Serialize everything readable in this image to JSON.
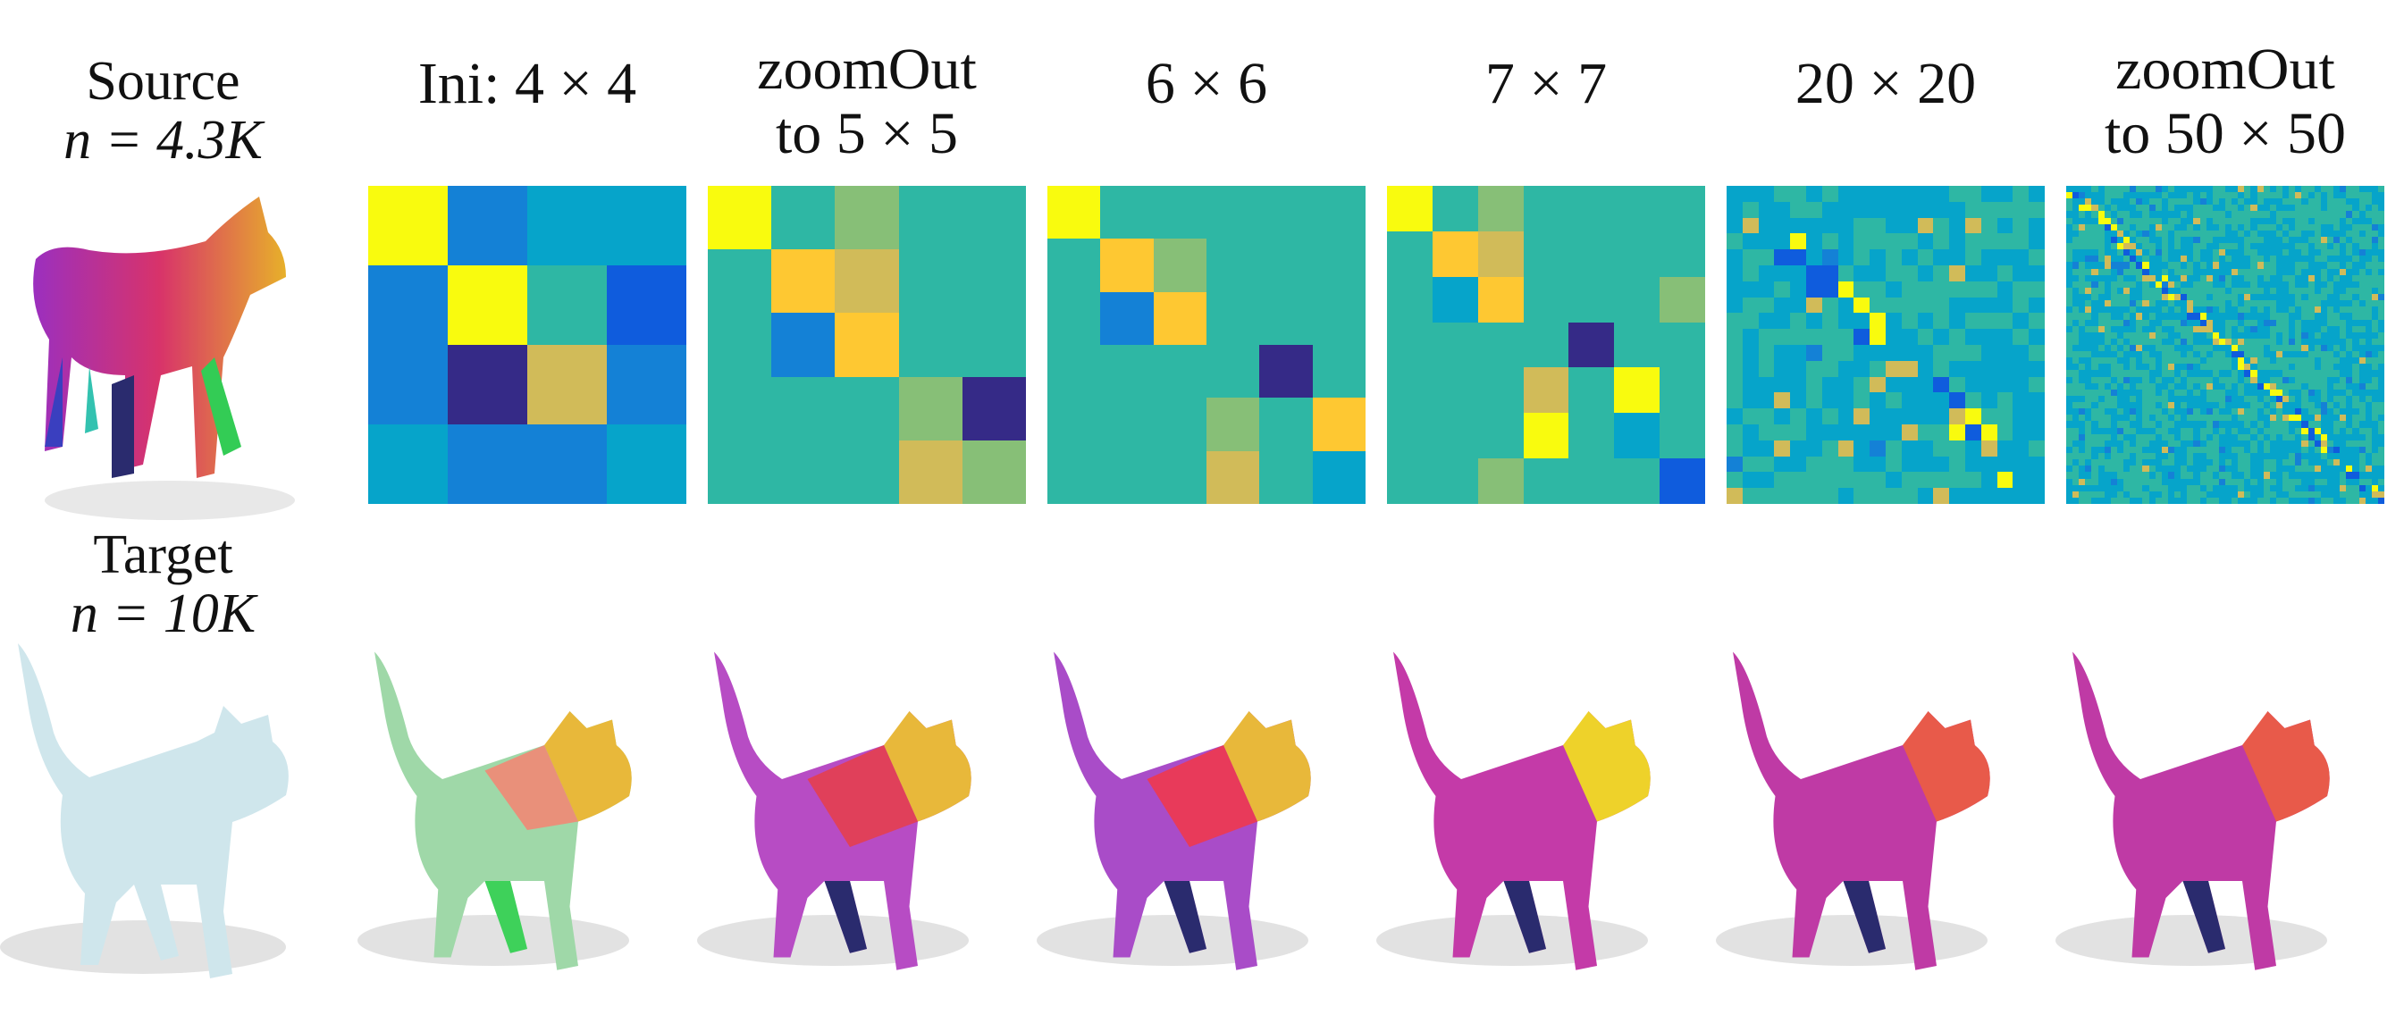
{
  "source": {
    "title": "Source",
    "n_label": "n = 4.3K"
  },
  "target": {
    "title": "Target",
    "n_label": "n = 10K"
  },
  "columns": [
    {
      "line1": "Ini: 4 × 4",
      "line2": "",
      "size": 4
    },
    {
      "line1": "zoomOut",
      "line2": "to 5 × 5",
      "size": 5
    },
    {
      "line1": "6 × 6",
      "line2": "",
      "size": 6
    },
    {
      "line1": "7 × 7",
      "line2": "",
      "size": 7
    },
    {
      "line1": "20 × 20",
      "line2": "",
      "size": 20
    },
    {
      "line1": "zoomOut",
      "line2": "to 50 × 50",
      "size": 50
    }
  ],
  "colormap": [
    "#352a87",
    "#0f5cdd",
    "#1481d6",
    "#06a4ca",
    "#2eb7a4",
    "#87bf77",
    "#d1bb59",
    "#fec832",
    "#f9fb0e"
  ],
  "matrices": [
    [
      [
        8,
        2,
        3,
        3
      ],
      [
        2,
        8,
        4,
        1
      ],
      [
        2,
        0,
        6,
        2
      ],
      [
        3,
        2,
        2,
        3
      ]
    ],
    [
      [
        8,
        4,
        5,
        4,
        4
      ],
      [
        4,
        7,
        6,
        4,
        4
      ],
      [
        4,
        2,
        7,
        4,
        4
      ],
      [
        4,
        4,
        4,
        5,
        0
      ],
      [
        4,
        4,
        4,
        6,
        5
      ]
    ],
    [
      [
        8,
        4,
        4,
        4,
        4,
        4
      ],
      [
        4,
        7,
        5,
        4,
        4,
        4
      ],
      [
        4,
        2,
        7,
        4,
        4,
        4
      ],
      [
        4,
        4,
        4,
        4,
        0,
        4
      ],
      [
        4,
        4,
        4,
        5,
        4,
        7
      ],
      [
        4,
        4,
        4,
        6,
        4,
        3
      ]
    ],
    [
      [
        8,
        4,
        5,
        4,
        4,
        4,
        4
      ],
      [
        4,
        7,
        6,
        4,
        4,
        4,
        4
      ],
      [
        4,
        3,
        7,
        4,
        4,
        4,
        5
      ],
      [
        4,
        4,
        4,
        4,
        0,
        4,
        4
      ],
      [
        4,
        4,
        4,
        6,
        4,
        8,
        4
      ],
      [
        4,
        4,
        4,
        8,
        4,
        3,
        4
      ],
      [
        4,
        4,
        5,
        4,
        4,
        4,
        1
      ]
    ]
  ]
}
